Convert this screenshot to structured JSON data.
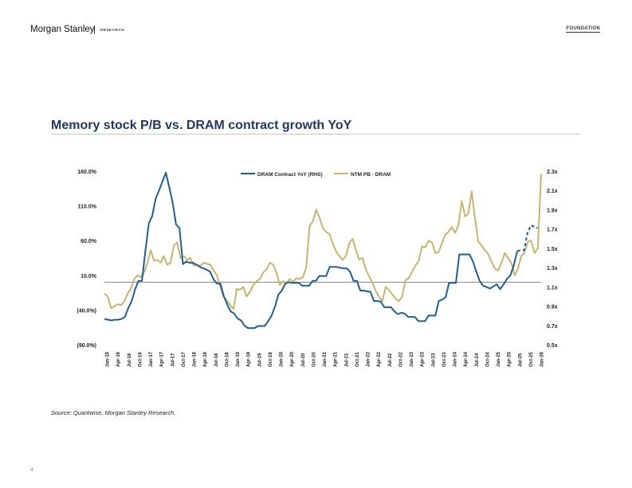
{
  "header": {
    "brand": "Morgan Stanley",
    "separator": "|",
    "sub": "RESEARCH",
    "tag": "FOUNDATION"
  },
  "title": "Memory stock P/B vs. DRAM contract growth YoY",
  "source": "Source: Quantwise, Morgan Stanley Research.",
  "page_number": "4",
  "colors": {
    "dram": "#1f5f99",
    "pb": "#c9b36f",
    "title": "#1f3864",
    "reference_line": "#8a8a8a"
  },
  "chart_data": {
    "type": "line",
    "title": "",
    "legend": [
      "DRAM Contract YoY (RHS)",
      "NTM PB - DRAM"
    ],
    "legend_position": "top-center",
    "left_axis": {
      "ticks": [
        160,
        110,
        60,
        10,
        -40,
        -90
      ],
      "tick_labels": [
        "160.0%",
        "110.0%",
        "60.0%",
        "10.0%",
        "(40.0%)",
        "(90.0%)"
      ],
      "range": [
        -90,
        160
      ]
    },
    "right_axis": {
      "ticks": [
        2.3,
        2.1,
        1.9,
        1.7,
        1.5,
        1.3,
        1.1,
        0.9,
        0.7,
        0.5
      ],
      "tick_labels": [
        "2.3x",
        "2.1x",
        "1.9x",
        "1.7x",
        "1.5x",
        "1.3x",
        "1.1x",
        "0.9x",
        "0.7x",
        "0.5x"
      ],
      "range": [
        0.5,
        2.3
      ]
    },
    "reference_line_value": 0,
    "x_labels": [
      "Jan-16",
      "Apr-16",
      "Jul-16",
      "Oct-16",
      "Jan-17",
      "Apr-17",
      "Jul-17",
      "Oct-17",
      "Jan-18",
      "Apr-18",
      "Jul-18",
      "Oct-18",
      "Jan-19",
      "Apr-19",
      "Jul-19",
      "Oct-19",
      "Jan-20",
      "Apr-20",
      "Jul-20",
      "Oct-20",
      "Jan-21",
      "Apr-21",
      "Jul-21",
      "Oct-21",
      "Jan-22",
      "Apr-22",
      "Jul-22",
      "Oct-22",
      "Jan-23",
      "Apr-23",
      "Jul-23",
      "Oct-23",
      "Jan-24",
      "Apr-24",
      "Jul-24",
      "Oct-24",
      "Jan-25",
      "Apr-25",
      "Jul-25",
      "Oct-25",
      "Jan-26"
    ],
    "series": [
      {
        "name": "DRAM Contract YoY (RHS)",
        "axis": "left",
        "style": "solid",
        "values": [
          -53,
          -54,
          -55,
          -54,
          -54,
          -53,
          -50,
          -37,
          -27,
          -10,
          2,
          2,
          45,
          85,
          95,
          120,
          132,
          145,
          158,
          137,
          115,
          83,
          78,
          26,
          30,
          28,
          28,
          25,
          22,
          20,
          18,
          15,
          4,
          -2,
          -2,
          -20,
          -32,
          -42,
          -45,
          -52,
          -55,
          -62,
          -66,
          -66,
          -66,
          -63,
          -63,
          -63,
          -56,
          -48,
          -35,
          -18,
          -12,
          -2,
          0,
          -1,
          -1,
          -1,
          -5,
          -5,
          -5,
          2,
          2,
          9,
          9,
          9,
          22,
          22,
          22,
          21,
          20,
          20,
          15,
          2,
          2,
          -12,
          -12,
          -13,
          -14,
          -27,
          -27,
          -28,
          -36,
          -36,
          -36,
          -42,
          -46,
          -44,
          -45,
          -50,
          -50,
          -50,
          -56,
          -56,
          -56,
          -48,
          -48,
          -48,
          -27,
          -25,
          -22,
          -1,
          -1,
          -1,
          40,
          40,
          40,
          40,
          30,
          15,
          2,
          -5,
          -7,
          -9,
          -6,
          -3,
          -10,
          -3,
          5,
          10,
          25,
          45
        ],
        "dashed_tail": [
          45,
          46,
          46,
          71,
          82,
          80,
          78
        ]
      },
      {
        "name": "NTM PB - DRAM",
        "axis": "right",
        "style": "solid",
        "values": [
          1.03,
          1.0,
          0.88,
          0.9,
          0.92,
          0.91,
          0.95,
          1.03,
          1.08,
          1.18,
          1.22,
          1.2,
          1.25,
          1.35,
          1.48,
          1.37,
          1.38,
          1.35,
          1.42,
          1.33,
          1.35,
          1.53,
          1.56,
          1.4,
          1.42,
          1.38,
          1.4,
          1.32,
          1.33,
          1.32,
          1.35,
          1.34,
          1.33,
          1.27,
          1.22,
          1.1,
          1.0,
          0.96,
          0.91,
          0.87,
          1.08,
          1.07,
          1.1,
          1.0,
          1.05,
          1.12,
          1.16,
          1.18,
          1.25,
          1.28,
          1.35,
          1.33,
          1.25,
          1.12,
          1.16,
          1.14,
          1.18,
          1.15,
          1.19,
          1.18,
          1.2,
          1.3,
          1.73,
          1.78,
          1.9,
          1.82,
          1.71,
          1.67,
          1.65,
          1.55,
          1.47,
          1.42,
          1.38,
          1.42,
          1.55,
          1.6,
          1.48,
          1.38,
          1.4,
          1.28,
          1.21,
          1.14,
          1.06,
          1.0,
          0.95,
          1.1,
          1.07,
          1.02,
          0.98,
          0.95,
          1.0,
          1.17,
          1.19,
          1.26,
          1.32,
          1.37,
          1.52,
          1.51,
          1.58,
          1.56,
          1.45,
          1.46,
          1.55,
          1.64,
          1.67,
          1.72,
          1.66,
          1.74,
          1.99,
          1.83,
          1.86,
          2.09,
          1.81,
          1.57,
          1.53,
          1.48,
          1.44,
          1.36,
          1.29,
          1.27,
          1.35,
          1.45,
          1.4,
          1.35,
          1.22,
          1.29,
          1.42,
          1.46,
          1.57,
          1.58,
          1.45,
          1.5,
          2.27
        ]
      }
    ]
  }
}
